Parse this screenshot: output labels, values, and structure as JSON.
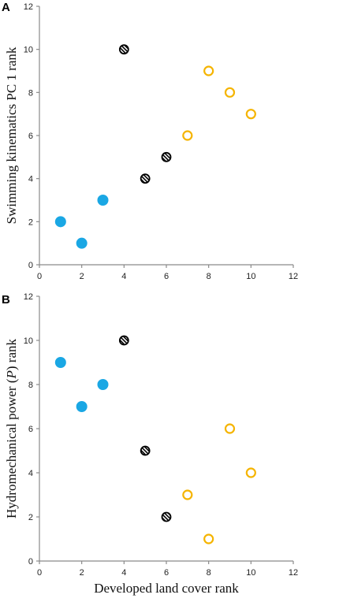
{
  "chart_data": [
    {
      "type": "scatter",
      "panel": "A",
      "xlabel": "",
      "ylabel": "Swimming kinematics PC 1 rank",
      "xlim": [
        0,
        12
      ],
      "ylim": [
        0,
        12
      ],
      "xticks": [
        0,
        2,
        4,
        6,
        8,
        10,
        12
      ],
      "yticks": [
        0,
        2,
        4,
        6,
        8,
        10,
        12
      ],
      "grid": false,
      "series": [
        {
          "marker": "filled",
          "color": "#1aa7e4",
          "points": [
            [
              1,
              2
            ],
            [
              2,
              1
            ],
            [
              3,
              3
            ]
          ]
        },
        {
          "marker": "hatched",
          "color": "#000000",
          "points": [
            [
              4,
              10
            ],
            [
              5,
              4
            ],
            [
              6,
              5
            ]
          ]
        },
        {
          "marker": "open",
          "color": "#f5b400",
          "points": [
            [
              7,
              6
            ],
            [
              8,
              9
            ],
            [
              9,
              8
            ],
            [
              10,
              7
            ]
          ]
        }
      ]
    },
    {
      "type": "scatter",
      "panel": "B",
      "xlabel": "Developed land cover rank",
      "ylabel": "Hydromechanical power (P) rank",
      "xlim": [
        0,
        12
      ],
      "ylim": [
        0,
        12
      ],
      "xticks": [
        0,
        2,
        4,
        6,
        8,
        10,
        12
      ],
      "yticks": [
        0,
        2,
        4,
        6,
        8,
        10,
        12
      ],
      "grid": false,
      "series": [
        {
          "marker": "filled",
          "color": "#1aa7e4",
          "points": [
            [
              1,
              9
            ],
            [
              2,
              7
            ],
            [
              3,
              8
            ]
          ]
        },
        {
          "marker": "hatched",
          "color": "#000000",
          "points": [
            [
              4,
              10
            ],
            [
              5,
              5
            ],
            [
              6,
              2
            ]
          ]
        },
        {
          "marker": "open",
          "color": "#f5b400",
          "points": [
            [
              7,
              3
            ],
            [
              8,
              1
            ],
            [
              9,
              6
            ],
            [
              10,
              4
            ]
          ]
        }
      ]
    }
  ]
}
